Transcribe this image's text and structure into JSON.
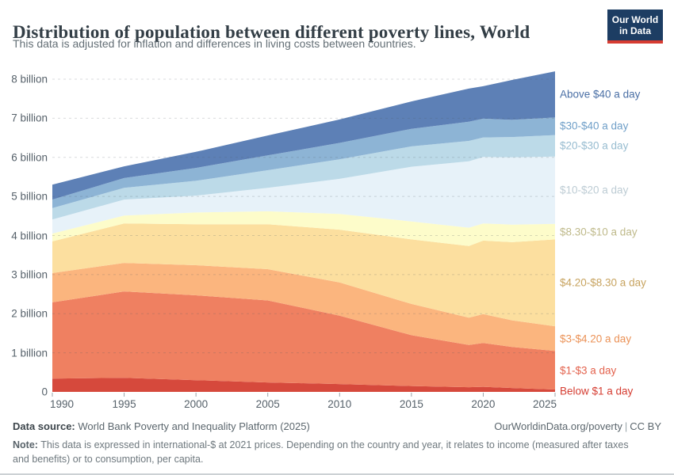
{
  "header": {
    "title": "Distribution of population between different poverty lines, World",
    "subtitle": "This data is adjusted for inflation and differences in living costs between countries.",
    "logo": {
      "line1": "Our World",
      "line2": "in Data",
      "bg": "#1d3d63",
      "accent": "#d73c32"
    }
  },
  "chart_data": {
    "type": "area",
    "stacked": true,
    "title": "Distribution of population between different poverty lines, World",
    "units": "billion people",
    "xlim": [
      1990,
      2025
    ],
    "ylim": [
      0,
      8.4
    ],
    "grid": "dashed horizontal",
    "legend_position": "right",
    "x": [
      1990,
      1995,
      2000,
      2005,
      2010,
      2015,
      2019,
      2020,
      2022,
      2025
    ],
    "series": [
      {
        "name": "Below $1 a day",
        "color": "#d6493c",
        "label_color": "#d53d32",
        "values": [
          0.34,
          0.36,
          0.3,
          0.24,
          0.2,
          0.15,
          0.12,
          0.13,
          0.1,
          0.06
        ]
      },
      {
        "name": "$1-$3 a day",
        "color": "#ef8061",
        "label_color": "#e3624d",
        "values": [
          1.95,
          2.21,
          2.17,
          2.1,
          1.75,
          1.3,
          1.08,
          1.12,
          1.05,
          0.99
        ]
      },
      {
        "name": "$3-$4.20 a day",
        "color": "#fbb57e",
        "label_color": "#eb9257",
        "values": [
          0.75,
          0.73,
          0.77,
          0.8,
          0.85,
          0.8,
          0.7,
          0.74,
          0.68,
          0.63
        ]
      },
      {
        "name": "$4.20-$8.30 a day",
        "color": "#fcdf9f",
        "label_color": "#c7a35f",
        "values": [
          0.81,
          1.01,
          1.05,
          1.15,
          1.35,
          1.65,
          1.83,
          1.88,
          2.0,
          2.22
        ]
      },
      {
        "name": "$8.30-$10 a day",
        "color": "#fdfcca",
        "label_color": "#bfba8b",
        "values": [
          0.2,
          0.2,
          0.3,
          0.33,
          0.4,
          0.46,
          0.47,
          0.44,
          0.45,
          0.4
        ]
      },
      {
        "name": "$10-$20 a day",
        "color": "#e7f2f9",
        "label_color": "#bdccd4",
        "values": [
          0.36,
          0.41,
          0.43,
          0.6,
          0.9,
          1.4,
          1.7,
          1.7,
          1.72,
          1.72
        ]
      },
      {
        "name": "$20-$30 a day",
        "color": "#bcdae8",
        "label_color": "#97bcd0",
        "values": [
          0.29,
          0.3,
          0.38,
          0.45,
          0.5,
          0.52,
          0.52,
          0.5,
          0.52,
          0.55
        ]
      },
      {
        "name": "$30-$40 a day",
        "color": "#8db4d5",
        "label_color": "#6f9fc8",
        "values": [
          0.22,
          0.25,
          0.33,
          0.38,
          0.42,
          0.45,
          0.49,
          0.48,
          0.44,
          0.45
        ]
      },
      {
        "name": "Above $40 a day",
        "color": "#5d80b6",
        "label_color": "#4a6fa5",
        "values": [
          0.38,
          0.3,
          0.41,
          0.51,
          0.6,
          0.7,
          0.85,
          0.83,
          1.02,
          1.18
        ]
      }
    ],
    "yticks": [
      {
        "value": 0,
        "label": "0"
      },
      {
        "value": 1,
        "label": "1 billion"
      },
      {
        "value": 2,
        "label": "2 billion"
      },
      {
        "value": 3,
        "label": "3 billion"
      },
      {
        "value": 4,
        "label": "4 billion"
      },
      {
        "value": 5,
        "label": "5 billion"
      },
      {
        "value": 6,
        "label": "6 billion"
      },
      {
        "value": 7,
        "label": "7 billion"
      },
      {
        "value": 8,
        "label": "8 billion"
      }
    ],
    "xticks": [
      {
        "value": 1990,
        "label": "1990"
      },
      {
        "value": 1995,
        "label": "1995"
      },
      {
        "value": 2000,
        "label": "2000"
      },
      {
        "value": 2005,
        "label": "2005"
      },
      {
        "value": 2010,
        "label": "2010"
      },
      {
        "value": 2015,
        "label": "2015"
      },
      {
        "value": 2020,
        "label": "2020"
      },
      {
        "value": 2025,
        "label": "2025"
      }
    ]
  },
  "footer": {
    "source_label": "Data source:",
    "source_value": "World Bank Poverty and Inequality Platform (2025)",
    "link": "OurWorldinData.org/poverty",
    "separator": "|",
    "license": "CC BY",
    "note_label": "Note:",
    "note_value": "This data is expressed in international-$ at 2021 prices. Depending on the country and year, it relates to income (measured after taxes and benefits) or to consumption, per capita."
  }
}
